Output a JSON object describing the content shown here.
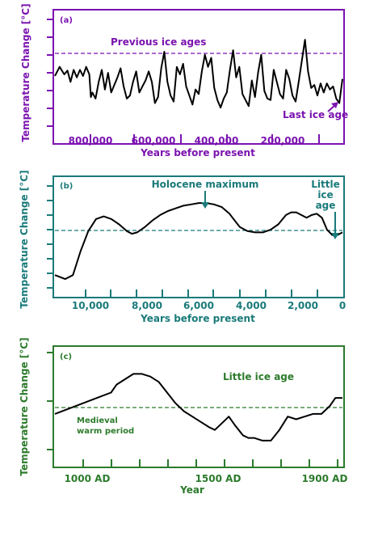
{
  "colors": {
    "purple": "#7b13b0",
    "teal": "#1a7a7a",
    "green": "#2c7b2c",
    "curve": "#000000"
  },
  "panels": [
    {
      "id": "a",
      "panel_label": "(a)",
      "ylabel": "Temperature Change [°C]",
      "xlabel": "Years before present",
      "annotations": [
        "Previous ice ages",
        "Last ice age"
      ],
      "tick_labels": [
        "800,000",
        "600,000",
        "400,000",
        "200,000"
      ],
      "reference_line": "dashed"
    },
    {
      "id": "b",
      "panel_label": "(b)",
      "ylabel": "Temperature Change [°C]",
      "xlabel": "Years before present",
      "annotations": [
        "Holocene maximum",
        "Little",
        "ice",
        "age"
      ],
      "tick_labels": [
        "10,000",
        "8,000",
        "6,000",
        "4,000",
        "2,000",
        "0"
      ],
      "reference_line": "dashed"
    },
    {
      "id": "c",
      "panel_label": "(c)",
      "ylabel": "Temperature Change [°C]",
      "xlabel": "Year",
      "annotations": [
        "Little ice age",
        "Medieval",
        "warm period"
      ],
      "tick_labels": [
        "1000 AD",
        "1500 AD",
        "1900 AD"
      ],
      "reference_line": "dashed"
    }
  ],
  "chart_data": [
    {
      "type": "line",
      "panel": "a",
      "xlabel": "Years before present",
      "ylabel": "Temperature Change [°C]",
      "x_ticks": [
        800000,
        600000,
        400000,
        200000
      ],
      "xlim": [
        920000,
        0
      ],
      "ylim": [
        -8,
        4
      ],
      "grid": false,
      "series": [
        {
          "x": [
            920000,
            905000,
            890000,
            880000,
            870000,
            860000,
            850000,
            840000,
            830000,
            820000,
            810000,
            805000,
            800000,
            790000,
            780000,
            770000,
            760000,
            750000,
            740000,
            730000,
            720000,
            710000,
            700000,
            690000,
            680000,
            670000,
            660000,
            650000,
            640000,
            630000,
            620000,
            610000,
            600000,
            590000,
            580000,
            570000,
            560000,
            550000,
            540000,
            530000,
            520000,
            510000,
            500000,
            490000,
            480000,
            470000,
            460000,
            450000,
            440000,
            430000,
            420000,
            410000,
            400000,
            390000,
            380000,
            370000,
            360000,
            350000,
            340000,
            330000,
            320000,
            310000,
            300000,
            290000,
            280000,
            270000,
            260000,
            250000,
            240000,
            230000,
            220000,
            210000,
            200000,
            190000,
            180000,
            170000,
            160000,
            150000,
            140000,
            130000,
            120000,
            110000,
            100000,
            90000,
            80000,
            70000,
            60000,
            50000,
            40000,
            30000,
            20000,
            10000,
            0
          ],
          "y": [
            -2.2,
            -1.0,
            -2.0,
            -1.5,
            -3.0,
            -1.4,
            -2.4,
            -1.4,
            -2.2,
            -1.0,
            -2.0,
            -5.0,
            -4.4,
            -5.2,
            -3.0,
            -1.4,
            -4.0,
            -1.8,
            -4.4,
            -3.4,
            -2.4,
            -1.2,
            -3.6,
            -5.2,
            -4.8,
            -3.0,
            -1.6,
            -4.4,
            -3.6,
            -2.8,
            -1.6,
            -3.0,
            -5.8,
            -5.0,
            -1.2,
            1.0,
            -3.0,
            -4.8,
            -5.6,
            -1.0,
            -2.0,
            -0.6,
            -3.6,
            -4.8,
            -6.0,
            -4.0,
            -4.6,
            -1.6,
            0.6,
            -1.0,
            0.2,
            -3.8,
            -5.4,
            -6.4,
            -5.2,
            -4.4,
            -1.4,
            1.2,
            -2.4,
            -1.0,
            -4.6,
            -5.4,
            -6.2,
            -2.8,
            -5.0,
            -1.8,
            0.6,
            -4.2,
            -5.2,
            -5.4,
            -1.4,
            -3.0,
            -4.6,
            -5.2,
            -1.4,
            -2.6,
            -4.8,
            -5.6,
            -3.0,
            -0.2,
            2.6,
            -1.6,
            -3.8,
            -3.4,
            -4.8,
            -3.2,
            -4.4,
            -3.2,
            -4.0,
            -3.6,
            -5.2,
            -5.8,
            -2.6
          ]
        }
      ]
    },
    {
      "type": "line",
      "panel": "b",
      "xlabel": "Years before present",
      "ylabel": "Temperature Change [°C]",
      "x_ticks": [
        10000,
        8000,
        6000,
        4000,
        2000,
        0
      ],
      "xlim": [
        11200,
        0
      ],
      "ylim": [
        -5,
        3
      ],
      "grid": false,
      "series": [
        {
          "x": [
            11200,
            10800,
            10500,
            10200,
            9900,
            9600,
            9300,
            9000,
            8700,
            8400,
            8200,
            8000,
            7700,
            7400,
            7100,
            6800,
            6500,
            6200,
            5900,
            5600,
            5300,
            5000,
            4700,
            4400,
            4200,
            4000,
            3700,
            3400,
            3100,
            2800,
            2500,
            2200,
            2000,
            1800,
            1600,
            1400,
            1200,
            1000,
            800,
            600,
            400,
            200,
            0
          ],
          "y": [
            -3.8,
            -4.1,
            -3.8,
            -2.0,
            -0.5,
            0.4,
            0.6,
            0.4,
            0.0,
            -0.5,
            -0.7,
            -0.6,
            -0.2,
            0.3,
            0.7,
            1.0,
            1.2,
            1.4,
            1.5,
            1.6,
            1.6,
            1.5,
            1.3,
            0.8,
            0.3,
            -0.2,
            -0.5,
            -0.6,
            -0.6,
            -0.4,
            0.0,
            0.7,
            0.9,
            0.9,
            0.7,
            0.5,
            0.7,
            0.8,
            0.5,
            -0.4,
            -0.8,
            -0.8,
            -0.6
          ]
        }
      ]
    },
    {
      "type": "line",
      "panel": "c",
      "xlabel": "Year",
      "ylabel": "Temperature Change [°C]",
      "x_ticks": [
        1000,
        1500,
        1900
      ],
      "xlim": [
        900,
        1925
      ],
      "ylim": [
        -2,
        2
      ],
      "grid": false,
      "series": [
        {
          "x": [
            900,
            950,
            1000,
            1050,
            1100,
            1120,
            1150,
            1180,
            1210,
            1240,
            1270,
            1300,
            1330,
            1360,
            1390,
            1420,
            1450,
            1470,
            1500,
            1520,
            1540,
            1570,
            1590,
            1610,
            1640,
            1670,
            1700,
            1730,
            1760,
            1790,
            1820,
            1850,
            1880,
            1900,
            1925
          ],
          "y": [
            -0.3,
            -0.1,
            0.1,
            0.3,
            0.5,
            0.8,
            1.0,
            1.2,
            1.2,
            1.1,
            0.9,
            0.5,
            0.1,
            -0.2,
            -0.4,
            -0.6,
            -0.8,
            -0.9,
            -0.6,
            -0.4,
            -0.7,
            -1.1,
            -1.2,
            -1.2,
            -1.3,
            -1.3,
            -0.9,
            -0.4,
            -0.5,
            -0.4,
            -0.3,
            -0.3,
            0.0,
            0.3,
            0.3
          ]
        }
      ]
    }
  ]
}
